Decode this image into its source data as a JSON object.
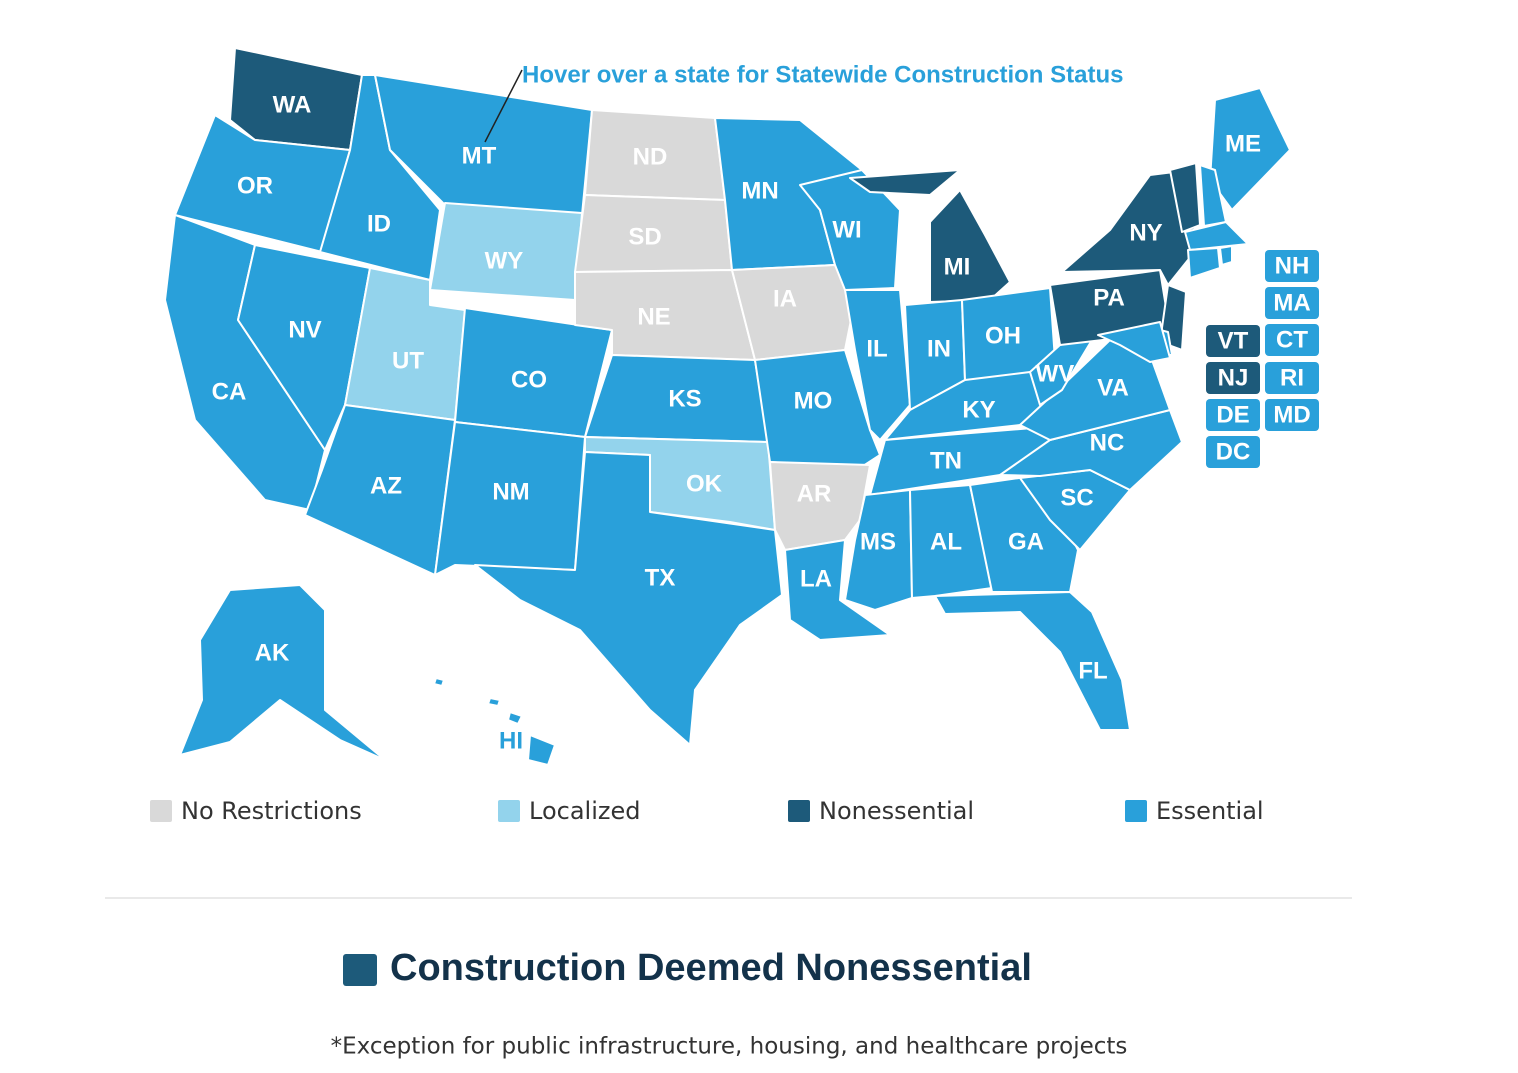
{
  "map": {
    "title": "Hover over a state for Statewide Construction Status",
    "states": [
      {
        "label": "WA",
        "color": "#1d5a7a"
      },
      {
        "label": "OR",
        "color": "#29a0da"
      },
      {
        "label": "CA",
        "color": "#29a0da"
      },
      {
        "label": "NV",
        "color": "#29a0da"
      },
      {
        "label": "ID",
        "color": "#29a0da"
      },
      {
        "label": "MT",
        "color": "#29a0da"
      },
      {
        "label": "WY",
        "color": "#93d3ec"
      },
      {
        "label": "UT",
        "color": "#93d3ec"
      },
      {
        "label": "CO",
        "color": "#29a0da"
      },
      {
        "label": "AZ",
        "color": "#29a0da"
      },
      {
        "label": "NM",
        "color": "#29a0da"
      },
      {
        "label": "ND",
        "color": "#d9d9d9"
      },
      {
        "label": "SD",
        "color": "#d9d9d9"
      },
      {
        "label": "NE",
        "color": "#d9d9d9"
      },
      {
        "label": "KS",
        "color": "#29a0da"
      },
      {
        "label": "OK",
        "color": "#93d3ec"
      },
      {
        "label": "TX",
        "color": "#29a0da"
      },
      {
        "label": "MN",
        "color": "#29a0da"
      },
      {
        "label": "IA",
        "color": "#d9d9d9"
      },
      {
        "label": "MO",
        "color": "#29a0da"
      },
      {
        "label": "AR",
        "color": "#d9d9d9"
      },
      {
        "label": "LA",
        "color": "#29a0da"
      },
      {
        "label": "WI",
        "color": "#29a0da"
      },
      {
        "label": "IL",
        "color": "#29a0da"
      },
      {
        "label": "MI",
        "color": "#1d5a7a"
      },
      {
        "label": "IN",
        "color": "#29a0da"
      },
      {
        "label": "OH",
        "color": "#29a0da"
      },
      {
        "label": "KY",
        "color": "#29a0da"
      },
      {
        "label": "TN",
        "color": "#29a0da"
      },
      {
        "label": "MS",
        "color": "#29a0da"
      },
      {
        "label": "AL",
        "color": "#29a0da"
      },
      {
        "label": "GA",
        "color": "#29a0da"
      },
      {
        "label": "FL",
        "color": "#29a0da"
      },
      {
        "label": "SC",
        "color": "#29a0da"
      },
      {
        "label": "NC",
        "color": "#29a0da"
      },
      {
        "label": "VA",
        "color": "#29a0da"
      },
      {
        "label": "WV",
        "color": "#29a0da"
      },
      {
        "label": "PA",
        "color": "#1d5a7a"
      },
      {
        "label": "NY",
        "color": "#1d5a7a"
      },
      {
        "label": "ME",
        "color": "#29a0da"
      },
      {
        "label": "AK",
        "color": "#29a0da"
      },
      {
        "label": "HI",
        "color": "#29a0da"
      },
      {
        "label": "VT",
        "color": "#1d5a7a"
      },
      {
        "label": "NJ",
        "color": "#1d5a7a"
      },
      {
        "label": "DE",
        "color": "#29a0da"
      },
      {
        "label": "DC",
        "color": "#29a0da"
      },
      {
        "label": "NH",
        "color": "#29a0da"
      },
      {
        "label": "MA",
        "color": "#29a0da"
      },
      {
        "label": "CT",
        "color": "#29a0da"
      },
      {
        "label": "RI",
        "color": "#29a0da"
      },
      {
        "label": "MD",
        "color": "#29a0da"
      }
    ],
    "legend": [
      {
        "label": "No Restrictions",
        "color": "#d9d9d9"
      },
      {
        "label": "Localized",
        "color": "#93d3ec"
      },
      {
        "label": "Nonessential",
        "color": "#1d5a7a"
      },
      {
        "label": "Essential",
        "color": "#29a0da"
      }
    ],
    "heading": {
      "text": "Construction Deemed Nonessential",
      "color": "#1d5a7a"
    },
    "footnote": "*Exception for public infrastructure, housing, and healthcare projects"
  }
}
